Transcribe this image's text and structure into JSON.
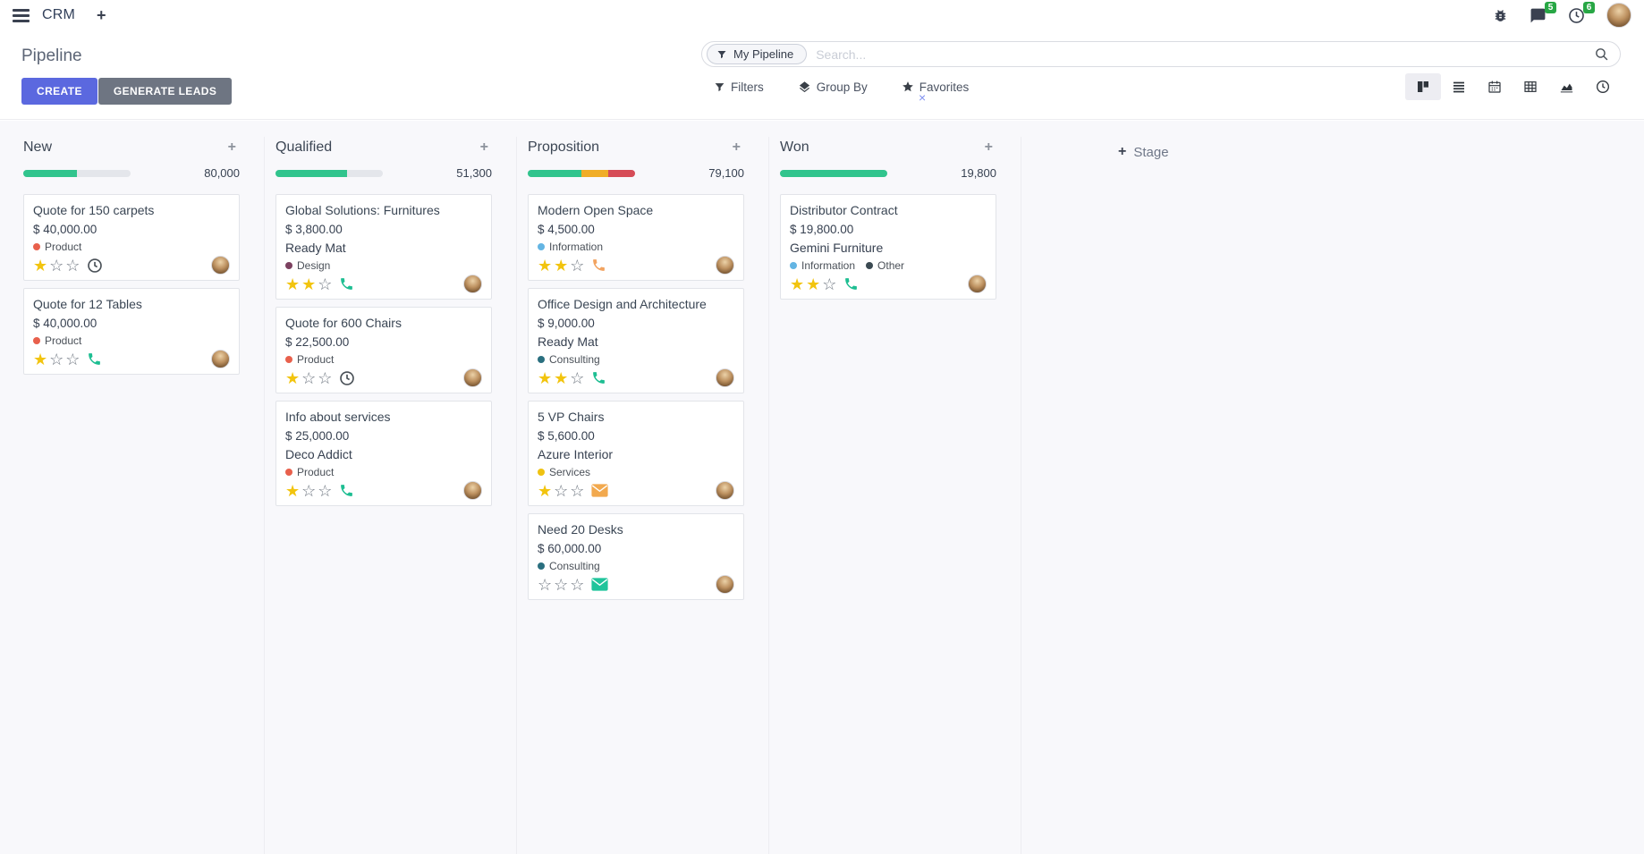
{
  "navbar": {
    "app_name": "CRM",
    "add_label": "+",
    "message_count": "5",
    "activity_count": "6"
  },
  "control_panel": {
    "title": "Pipeline",
    "create_label": "CREATE",
    "generate_leads_label": "GENERATE LEADS",
    "search": {
      "facet": "My Pipeline",
      "facet_remove": "×",
      "placeholder": "Search..."
    },
    "filters_label": "Filters",
    "group_by_label": "Group By",
    "favorites_label": "Favorites"
  },
  "colors": {
    "primary": "#5b68df",
    "secondary": "#6e7582",
    "progress_green": "#31c48d",
    "progress_yellow": "#f0ad27",
    "progress_red": "#d64c57",
    "star_gold": "#f2c40e",
    "badge_green": "#28a745"
  },
  "board": {
    "add_stage_label": "Stage",
    "columns": [
      {
        "name": "New",
        "amount": "80,000",
        "progress": [
          {
            "color": "#31c48d",
            "pct": 50
          }
        ],
        "cards": [
          {
            "title": "Quote for 150 carpets",
            "amount": "$ 40,000.00",
            "tags": [
              {
                "label": "Product",
                "color": "#e8604c"
              }
            ],
            "stars": 1,
            "activity": {
              "icon": "clock",
              "color": "#495057"
            }
          },
          {
            "title": "Quote for 12 Tables",
            "amount": "$ 40,000.00",
            "tags": [
              {
                "label": "Product",
                "color": "#e8604c"
              }
            ],
            "stars": 1,
            "activity": {
              "icon": "phone",
              "color": "#1ebe92"
            }
          }
        ]
      },
      {
        "name": "Qualified",
        "amount": "51,300",
        "progress": [
          {
            "color": "#31c48d",
            "pct": 67
          }
        ],
        "cards": [
          {
            "title": "Global Solutions: Furnitures",
            "amount": "$ 3,800.00",
            "company": "Ready Mat",
            "tags": [
              {
                "label": "Design",
                "color": "#7c4160"
              }
            ],
            "stars": 2,
            "activity": {
              "icon": "phone",
              "color": "#1ebe92"
            }
          },
          {
            "title": "Quote for 600 Chairs",
            "amount": "$ 22,500.00",
            "tags": [
              {
                "label": "Product",
                "color": "#e8604c"
              }
            ],
            "stars": 1,
            "activity": {
              "icon": "clock",
              "color": "#495057"
            }
          },
          {
            "title": "Info about services",
            "amount": "$ 25,000.00",
            "company": "Deco Addict",
            "tags": [
              {
                "label": "Product",
                "color": "#e8604c"
              }
            ],
            "stars": 1,
            "activity": {
              "icon": "phone",
              "color": "#1ebe92"
            }
          }
        ]
      },
      {
        "name": "Proposition",
        "amount": "79,100",
        "progress": [
          {
            "color": "#31c48d",
            "pct": 50
          },
          {
            "color": "#f0ad27",
            "pct": 25
          },
          {
            "color": "#d64c57",
            "pct": 25
          }
        ],
        "cards": [
          {
            "title": "Modern Open Space",
            "amount": "$ 4,500.00",
            "tags": [
              {
                "label": "Information",
                "color": "#64b5e3"
              }
            ],
            "stars": 2,
            "activity": {
              "icon": "phone",
              "color": "#f2a360"
            }
          },
          {
            "title": "Office Design and Architecture",
            "amount": "$ 9,000.00",
            "company": "Ready Mat",
            "tags": [
              {
                "label": "Consulting",
                "color": "#2a6f7f"
              }
            ],
            "stars": 2,
            "activity": {
              "icon": "phone",
              "color": "#1ebe92"
            }
          },
          {
            "title": "5 VP Chairs",
            "amount": "$ 5,600.00",
            "company": "Azure Interior",
            "tags": [
              {
                "label": "Services",
                "color": "#efc211"
              }
            ],
            "stars": 1,
            "activity": {
              "icon": "mail",
              "color": "#f2a94e"
            }
          },
          {
            "title": "Need 20 Desks",
            "amount": "$ 60,000.00",
            "tags": [
              {
                "label": "Consulting",
                "color": "#2a6f7f"
              }
            ],
            "stars": 0,
            "activity": {
              "icon": "mail",
              "color": "#1fc49b"
            }
          }
        ]
      },
      {
        "name": "Won",
        "amount": "19,800",
        "progress": [
          {
            "color": "#31c48d",
            "pct": 100
          }
        ],
        "cards": [
          {
            "title": "Distributor Contract",
            "amount": "$ 19,800.00",
            "company": "Gemini Furniture",
            "tags": [
              {
                "label": "Information",
                "color": "#64b5e3"
              },
              {
                "label": "Other",
                "color": "#3b4a52"
              }
            ],
            "stars": 2,
            "activity": {
              "icon": "phone",
              "color": "#1ebe92"
            }
          }
        ]
      }
    ]
  }
}
